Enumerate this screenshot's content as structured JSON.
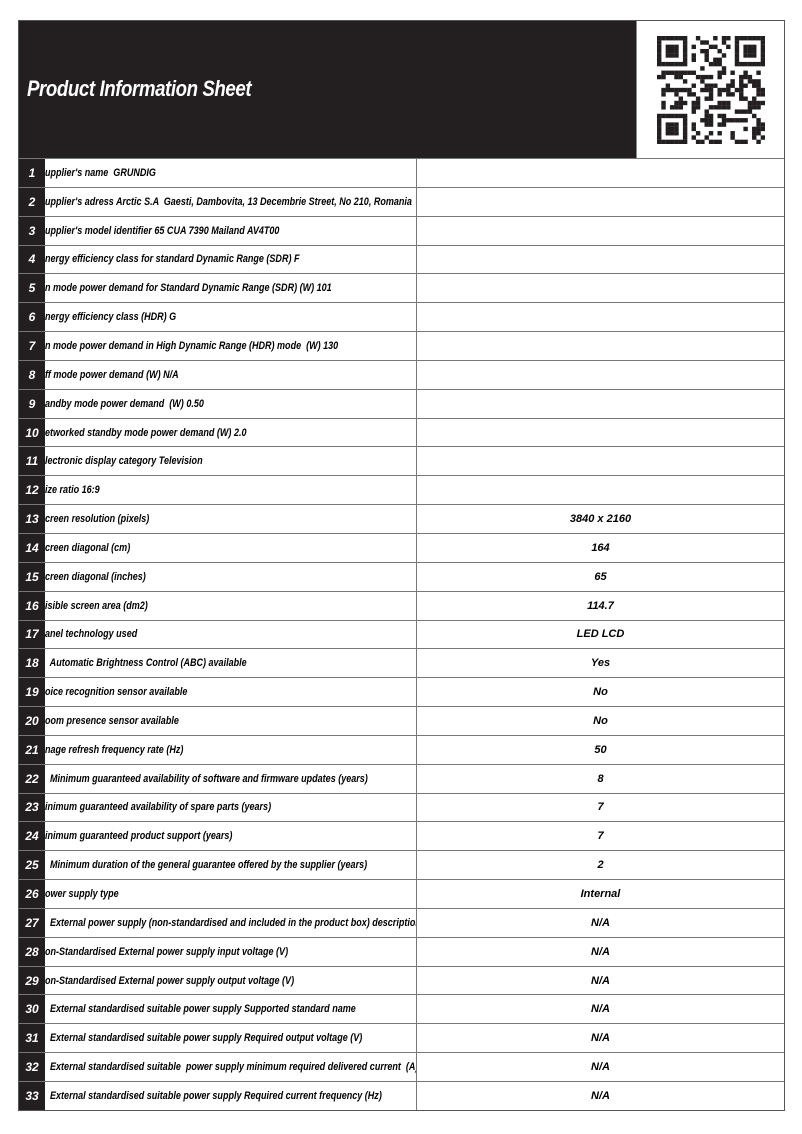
{
  "title": "Product Information Sheet",
  "rows": [
    {
      "n": "1",
      "label": "upplier's name  GRUNDIG",
      "value": ""
    },
    {
      "n": "2",
      "label": "upplier's adress Arctic S.A  Gaesti, Dambovita, 13 Decembrie Street, No 210, Romania",
      "value": ""
    },
    {
      "n": "3",
      "label": "upplier's model identifier 65 CUA 7390 Mailand AV4T00",
      "value": ""
    },
    {
      "n": "4",
      "label": "nergy efficiency class for standard Dynamic Range (SDR) F",
      "value": ""
    },
    {
      "n": "5",
      "label": "n mode power demand for Standard Dynamic Range (SDR) (W) 101",
      "value": ""
    },
    {
      "n": "6",
      "label": "nergy efficiency class (HDR) G",
      "value": ""
    },
    {
      "n": "7",
      "label": "n mode power demand in High Dynamic Range (HDR) mode  (W) 130",
      "value": ""
    },
    {
      "n": "8",
      "label": "ff mode power demand (W) N/A",
      "value": ""
    },
    {
      "n": "9",
      "label": "andby mode power demand  (W) 0.50",
      "value": ""
    },
    {
      "n": "10",
      "label": "etworked standby mode power demand (W) 2.0",
      "value": ""
    },
    {
      "n": "11",
      "label": "lectronic display category Television",
      "value": ""
    },
    {
      "n": "12",
      "label": "ize ratio 16:9",
      "value": ""
    },
    {
      "n": "13",
      "label": "creen resolution (pixels)",
      "value": "3840 x 2160"
    },
    {
      "n": "14",
      "label": "creen diagonal (cm)",
      "value": "164"
    },
    {
      "n": "15",
      "label": "creen diagonal (inches)",
      "value": "65"
    },
    {
      "n": "16",
      "label": "isible screen area (dm2)",
      "value": "114.7"
    },
    {
      "n": "17",
      "label": "anel technology used",
      "value": "LED LCD"
    },
    {
      "n": "18",
      "label": "  Automatic Brightness Control (ABC) available",
      "value": "Yes"
    },
    {
      "n": "19",
      "label": "oice recognition sensor available",
      "value": "No"
    },
    {
      "n": "20",
      "label": "oom presence sensor available",
      "value": "No"
    },
    {
      "n": "21",
      "label": "nage refresh frequency rate (Hz)",
      "value": "50"
    },
    {
      "n": "22",
      "label": "  Minimum guaranteed availability of software and firmware updates (years)",
      "value": "8"
    },
    {
      "n": "23",
      "label": "inimum guaranteed availability of spare parts (years)",
      "value": "7"
    },
    {
      "n": "24",
      "label": "inimum guaranteed product support (years)",
      "value": "7"
    },
    {
      "n": "25",
      "label": "  Minimum duration of the general guarantee offered by the supplier (years)",
      "value": "2"
    },
    {
      "n": "26",
      "label": "ower supply type",
      "value": "Internal"
    },
    {
      "n": "27",
      "label": "  External power supply (non-standardised and included in the product box) description",
      "value": "N/A"
    },
    {
      "n": "28",
      "label": "on-Standardised External power supply input voltage (V)",
      "value": "N/A"
    },
    {
      "n": "29",
      "label": "on-Standardised External power supply output voltage (V)",
      "value": "N/A"
    },
    {
      "n": "30",
      "label": "  External standardised suitable power supply Supported standard name",
      "value": "N/A"
    },
    {
      "n": "31",
      "label": "  External standardised suitable power supply Required output voltage (V)",
      "value": "N/A"
    },
    {
      "n": "32",
      "label": "  External standardised suitable  power supply minimum required delivered current  (A)",
      "value": "N/A"
    },
    {
      "n": "33",
      "label": "  External standardised suitable power supply Required current frequency (Hz)",
      "value": "N/A"
    }
  ]
}
